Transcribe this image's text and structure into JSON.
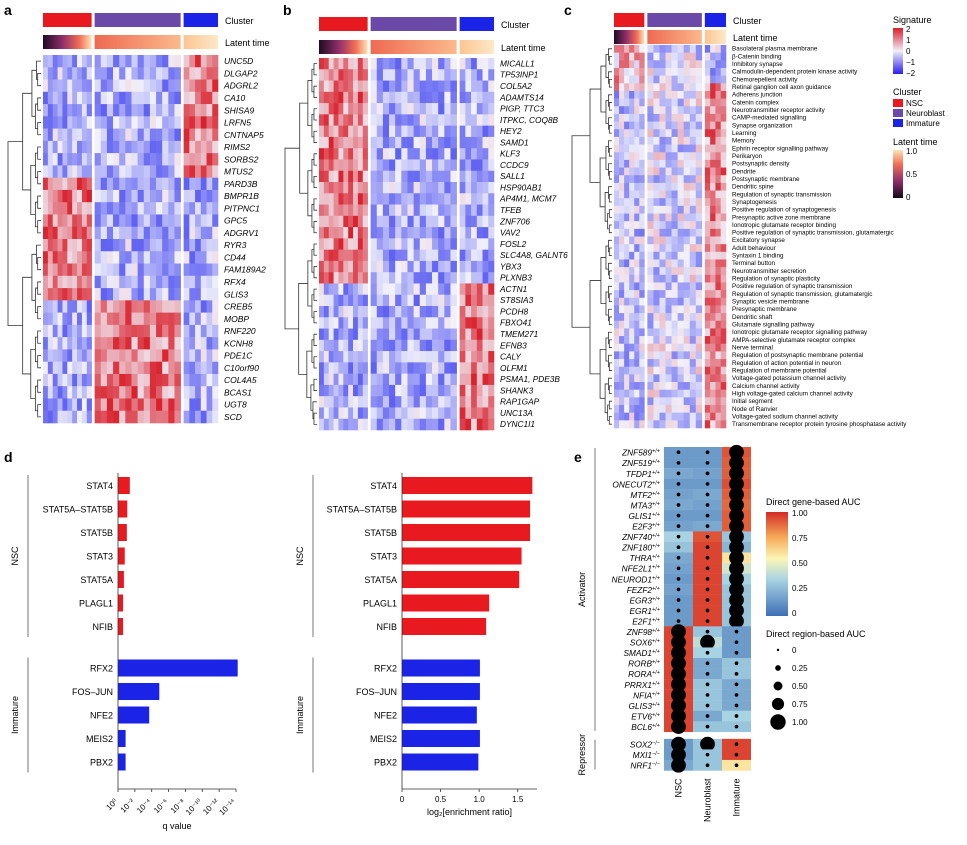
{
  "panels": {
    "a": "a",
    "b": "b",
    "c": "c",
    "d": "d",
    "e": "e"
  },
  "track_labels": {
    "cluster": "Cluster",
    "latent_time": "Latent time"
  },
  "colors": {
    "nsc": "#e8191f",
    "neuroblast": "#6a49a8",
    "immature": "#1a23e6",
    "heat_low": "#3a3df0",
    "heat_mid": "#f2f2fb",
    "heat_high": "#d81f2a",
    "auc_low": "#3b6fb6",
    "auc_high": "#d7262b"
  },
  "legend_c": {
    "signature_title": "Signature",
    "signature_ticks": [
      "2",
      "1",
      "0",
      "−1",
      "−2"
    ],
    "cluster_title": "Cluster",
    "cluster_items": [
      "NSC",
      "Neuroblast",
      "Immature"
    ],
    "latent_title": "Latent time",
    "latent_ticks": [
      "1.0",
      "0.5",
      "0"
    ]
  },
  "chart_data": [
    {
      "panel": "a",
      "type": "heatmap",
      "title": "",
      "column_groups": [
        "NSC",
        "Neuroblast",
        "Immature"
      ],
      "rows": [
        "UNC5D",
        "DLGAP2",
        "ADGRL2",
        "CA10",
        "SHISA9",
        "LRFN5",
        "CNTNAP5",
        "RIMS2",
        "SORBS2",
        "MTUS2",
        "PARD3B",
        "BMPR1B",
        "PITPNC1",
        "GPC5",
        "ADGRV1",
        "RYR3",
        "CD44",
        "FAM189A2",
        "RFX4",
        "GLIS3",
        "CREB5",
        "MOBP",
        "RNF220",
        "KCNH8",
        "PDE1C",
        "C10orf90",
        "COL4A5",
        "BCAS1",
        "UGT8",
        "SCD"
      ],
      "row_high_group": [
        "Immature",
        "Immature",
        "Immature",
        "Immature",
        "Immature",
        "Immature",
        "Immature",
        "Immature",
        "Immature",
        "Immature",
        "NSC",
        "NSC",
        "NSC",
        "NSC",
        "NSC",
        "NSC",
        "NSC",
        "NSC",
        "NSC",
        "NSC",
        "Neuroblast",
        "Neuroblast",
        "Neuroblast",
        "Neuroblast",
        "Neuroblast",
        "Neuroblast",
        "Neuroblast",
        "Neuroblast",
        "Neuroblast",
        "Neuroblast"
      ]
    },
    {
      "panel": "b",
      "type": "heatmap",
      "title": "",
      "column_groups": [
        "NSC",
        "Neuroblast",
        "Immature"
      ],
      "rows": [
        "MICALL1",
        "TP53INP1",
        "COL5A2",
        "ADAMTS14",
        "PIGP, TTC3",
        "ITPKC, COQ8B",
        "HEY2",
        "SAMD1",
        "KLF3",
        "CCDC9",
        "SALL1",
        "HSP90AB1",
        "AP4M1, MCM7",
        "TFEB",
        "ZNF706",
        "VAV2",
        "FOSL2",
        "SLC4A8, GALNT6",
        "YBX3",
        "PLXNB3",
        "ACTN1",
        "ST8SIA3",
        "PCDH8",
        "FBXO41",
        "TMEM271",
        "EFNB3",
        "CALY",
        "OLFM1",
        "PSMA1, PDE3B",
        "SHANK3",
        "RAP1GAP",
        "UNC13A",
        "DYNC1I1"
      ],
      "row_high_group": [
        "NSC",
        "NSC",
        "NSC",
        "NSC",
        "NSC",
        "NSC",
        "NSC",
        "NSC",
        "NSC",
        "NSC",
        "NSC",
        "NSC",
        "NSC",
        "NSC",
        "NSC",
        "NSC",
        "NSC",
        "NSC",
        "NSC",
        "NSC",
        "Immature",
        "Immature",
        "Immature",
        "Immature",
        "Immature",
        "Immature",
        "Immature",
        "Immature",
        "Immature",
        "Immature",
        "Immature",
        "Immature",
        "Immature"
      ]
    },
    {
      "panel": "c",
      "type": "heatmap",
      "title": "",
      "column_groups": [
        "NSC",
        "Neuroblast",
        "Immature"
      ],
      "rows": [
        "Basolateral plasma membrane",
        "β-Catenin binding",
        "Inhibitory synapse",
        "Calmodulin-dependent protein kinase activity",
        "Chemorepellent activity",
        "Retinal ganglion cell axon guidance",
        "Adherens junction",
        "Catenin complex",
        "Neurotransmitter receptor activity",
        "CAMP-mediated signalling",
        "Synapse organization",
        "Learning",
        "Memory",
        "Ephrin receptor signalling pathway",
        "Perikaryon",
        "Postsynaptic density",
        "Dendrite",
        "Postsynaptic membrane",
        "Dendritic spine",
        "Regulation of synaptic transmission",
        "Synaptogenesis",
        "Positive regulation of synaptogenesis",
        "Presynaptic active zone membrane",
        "Ionotropic glutamate receptor binding",
        "Positive regulation of synaptic transmission, glutamatergic",
        "Excitatory synapse",
        "Adult behaviour",
        "Syntaxin 1 binding",
        "Terminal button",
        "Neurotransmitter secretion",
        "Regulation of synaptic plasticity",
        "Positive regulation of synaptic transmission",
        "Regulation of synaptic transmission, glutamatergic",
        "Synaptic vesicle membrane",
        "Presynaptic membrane",
        "Dendritic shaft",
        "Glutamate signalling pathway",
        "Ionotropic glutamate receptor signalling pathway",
        "AMPA-selective glutamate receptor complex",
        "Nerve terminal",
        "Regulation of postsynaptic membrane potential",
        "Regulation of action potential in neuron",
        "Regulation of membrane potential",
        "Voltage-gated potassium channel activity",
        "Calcium channel activity",
        "High voltage-gated calcium channel activity",
        "Initial segment",
        "Node of Ranvier",
        "Voltage-gated sodium channel activity",
        "Transmembrane receptor protein tyrosine phosphatase activity"
      ]
    },
    {
      "panel": "d-left",
      "type": "bar",
      "orientation": "horizontal",
      "xlabel": "q value",
      "x_ticks": [
        "10⁰",
        "10⁻²",
        "10⁻⁴",
        "10⁻⁶",
        "10⁻⁸",
        "10⁻¹⁰",
        "10⁻¹²",
        "10⁻¹⁴"
      ],
      "x_unit": "-log10(q)",
      "xlim": [
        0,
        14
      ],
      "groups": [
        {
          "name": "NSC",
          "categories": [
            "STAT4",
            "STAT5A–STAT5B",
            "STAT5B",
            "STAT3",
            "STAT5A",
            "PLAGL1",
            "NFIB"
          ],
          "values": [
            1.4,
            1.1,
            1.05,
            0.8,
            0.7,
            0.6,
            0.6
          ]
        },
        {
          "name": "Immature",
          "categories": [
            "RFX2",
            "FOS–JUN",
            "NFE2",
            "MEIS2",
            "PBX2"
          ],
          "values": [
            14.2,
            4.9,
            3.7,
            0.9,
            0.9
          ]
        }
      ]
    },
    {
      "panel": "d-right",
      "type": "bar",
      "orientation": "horizontal",
      "xlabel": "log₂[enrichment ratio]",
      "x_ticks": [
        "0",
        "0.5",
        "1.0",
        "1.5"
      ],
      "xlim": [
        0,
        1.75
      ],
      "groups": [
        {
          "name": "NSC",
          "categories": [
            "STAT4",
            "STAT5A–STAT5B",
            "STAT5B",
            "STAT3",
            "STAT5A",
            "PLAGL1",
            "NFIB"
          ],
          "values": [
            1.69,
            1.66,
            1.66,
            1.55,
            1.52,
            1.13,
            1.09
          ]
        },
        {
          "name": "Immature",
          "categories": [
            "RFX2",
            "FOS–JUN",
            "NFE2",
            "MEIS2",
            "PBX2"
          ],
          "values": [
            1.01,
            1.01,
            0.97,
            1.01,
            0.99
          ]
        }
      ]
    },
    {
      "panel": "e",
      "type": "heatmap",
      "columns": [
        "NSC",
        "Neuroblast",
        "Immature"
      ],
      "color_legend_title": "Direct gene-based AUC",
      "color_ticks": [
        "1.00",
        "0.75",
        "0.50",
        "0.25",
        "0"
      ],
      "size_legend_title": "Direct region-based AUC",
      "size_ticks": [
        "0",
        "0.25",
        "0.50",
        "0.75",
        "1.00"
      ],
      "groups": [
        {
          "name": "Activator",
          "rows": [
            {
              "tf": "ZNF589",
              "sign": "+/+",
              "color": [
                0.15,
                0.15,
                0.92
              ],
              "size": [
                0.1,
                0.1,
                0.95
              ]
            },
            {
              "tf": "ZNF519",
              "sign": "+/+",
              "color": [
                0.15,
                0.15,
                0.9
              ],
              "size": [
                0.1,
                0.1,
                0.95
              ]
            },
            {
              "tf": "TFDP1",
              "sign": "+/+",
              "color": [
                0.2,
                0.18,
                0.9
              ],
              "size": [
                0.1,
                0.1,
                0.95
              ]
            },
            {
              "tf": "ONECUT2",
              "sign": "+/+",
              "color": [
                0.15,
                0.15,
                0.93
              ],
              "size": [
                0.1,
                0.1,
                0.95
              ]
            },
            {
              "tf": "MTF2",
              "sign": "+/+",
              "color": [
                0.18,
                0.2,
                0.9
              ],
              "size": [
                0.1,
                0.1,
                0.95
              ]
            },
            {
              "tf": "MTA3",
              "sign": "+/+",
              "color": [
                0.2,
                0.18,
                0.88
              ],
              "size": [
                0.1,
                0.1,
                0.95
              ]
            },
            {
              "tf": "GLIS1",
              "sign": "+/+",
              "color": [
                0.15,
                0.15,
                0.9
              ],
              "size": [
                0.1,
                0.1,
                0.95
              ]
            },
            {
              "tf": "E2F3",
              "sign": "+/+",
              "color": [
                0.18,
                0.2,
                0.9
              ],
              "size": [
                0.1,
                0.1,
                0.95
              ]
            },
            {
              "tf": "ZNF740",
              "sign": "+/+",
              "color": [
                0.35,
                0.92,
                0.3
              ],
              "size": [
                0.1,
                0.1,
                0.95
              ]
            },
            {
              "tf": "ZNF180",
              "sign": "+/+",
              "color": [
                0.3,
                0.95,
                0.25
              ],
              "size": [
                0.1,
                0.1,
                0.95
              ]
            },
            {
              "tf": "THRA",
              "sign": "+/+",
              "color": [
                0.2,
                0.95,
                0.6
              ],
              "size": [
                0.1,
                0.1,
                0.95
              ]
            },
            {
              "tf": "NFE2L1",
              "sign": "+/+",
              "color": [
                0.18,
                0.95,
                0.45
              ],
              "size": [
                0.1,
                0.1,
                0.95
              ]
            },
            {
              "tf": "NEUROD1",
              "sign": "+/+",
              "color": [
                0.15,
                0.95,
                0.35
              ],
              "size": [
                0.1,
                0.1,
                0.95
              ]
            },
            {
              "tf": "FEZF2",
              "sign": "+/+",
              "color": [
                0.18,
                0.95,
                0.3
              ],
              "size": [
                0.1,
                0.1,
                0.95
              ]
            },
            {
              "tf": "EGR3",
              "sign": "+/+",
              "color": [
                0.15,
                0.95,
                0.3
              ],
              "size": [
                0.1,
                0.1,
                0.95
              ]
            },
            {
              "tf": "EGR1",
              "sign": "+/+",
              "color": [
                0.15,
                0.95,
                0.3
              ],
              "size": [
                0.1,
                0.1,
                0.95
              ]
            },
            {
              "tf": "E2F1",
              "sign": "+/+",
              "color": [
                0.15,
                0.95,
                0.3
              ],
              "size": [
                0.1,
                0.1,
                0.95
              ]
            },
            {
              "tf": "ZNF98",
              "sign": "+/+",
              "color": [
                0.95,
                0.3,
                0.15
              ],
              "size": [
                0.95,
                0.1,
                0.1
              ]
            },
            {
              "tf": "SOX6",
              "sign": "+/+",
              "color": [
                0.95,
                0.4,
                0.15
              ],
              "size": [
                0.95,
                0.95,
                0.1
              ]
            },
            {
              "tf": "SMAD1",
              "sign": "+/+",
              "color": [
                0.95,
                0.35,
                0.15
              ],
              "size": [
                0.95,
                0.1,
                0.1
              ]
            },
            {
              "tf": "RORB",
              "sign": "+/+",
              "color": [
                0.95,
                0.2,
                0.3
              ],
              "size": [
                0.95,
                0.1,
                0.1
              ]
            },
            {
              "tf": "RORA",
              "sign": "+/+",
              "color": [
                0.95,
                0.2,
                0.3
              ],
              "size": [
                0.95,
                0.1,
                0.1
              ]
            },
            {
              "tf": "PRRX1",
              "sign": "+/+",
              "color": [
                0.95,
                0.3,
                0.2
              ],
              "size": [
                0.95,
                0.1,
                0.1
              ]
            },
            {
              "tf": "NFIA",
              "sign": "+/+",
              "color": [
                0.95,
                0.3,
                0.2
              ],
              "size": [
                0.95,
                0.1,
                0.1
              ]
            },
            {
              "tf": "GLIS3",
              "sign": "+/+",
              "color": [
                0.95,
                0.3,
                0.2
              ],
              "size": [
                0.95,
                0.1,
                0.1
              ]
            },
            {
              "tf": "ETV6",
              "sign": "+/+",
              "color": [
                0.95,
                0.2,
                0.35
              ],
              "size": [
                0.95,
                0.1,
                0.1
              ]
            },
            {
              "tf": "BCL6",
              "sign": "+/+",
              "color": [
                0.95,
                0.3,
                0.3
              ],
              "size": [
                0.95,
                0.1,
                0.1
              ]
            }
          ]
        },
        {
          "name": "Repressor",
          "rows": [
            {
              "tf": "SOX2",
              "sign": "−/−",
              "color": [
                0.15,
                0.3,
                0.95
              ],
              "size": [
                0.95,
                0.95,
                0.1
              ]
            },
            {
              "tf": "MXI1",
              "sign": "−/−",
              "color": [
                0.15,
                0.3,
                0.95
              ],
              "size": [
                0.95,
                0.1,
                0.1
              ]
            },
            {
              "tf": "NRF1",
              "sign": "−/−",
              "color": [
                0.2,
                0.3,
                0.6
              ],
              "size": [
                0.95,
                0.1,
                0.1
              ]
            }
          ]
        }
      ]
    }
  ]
}
